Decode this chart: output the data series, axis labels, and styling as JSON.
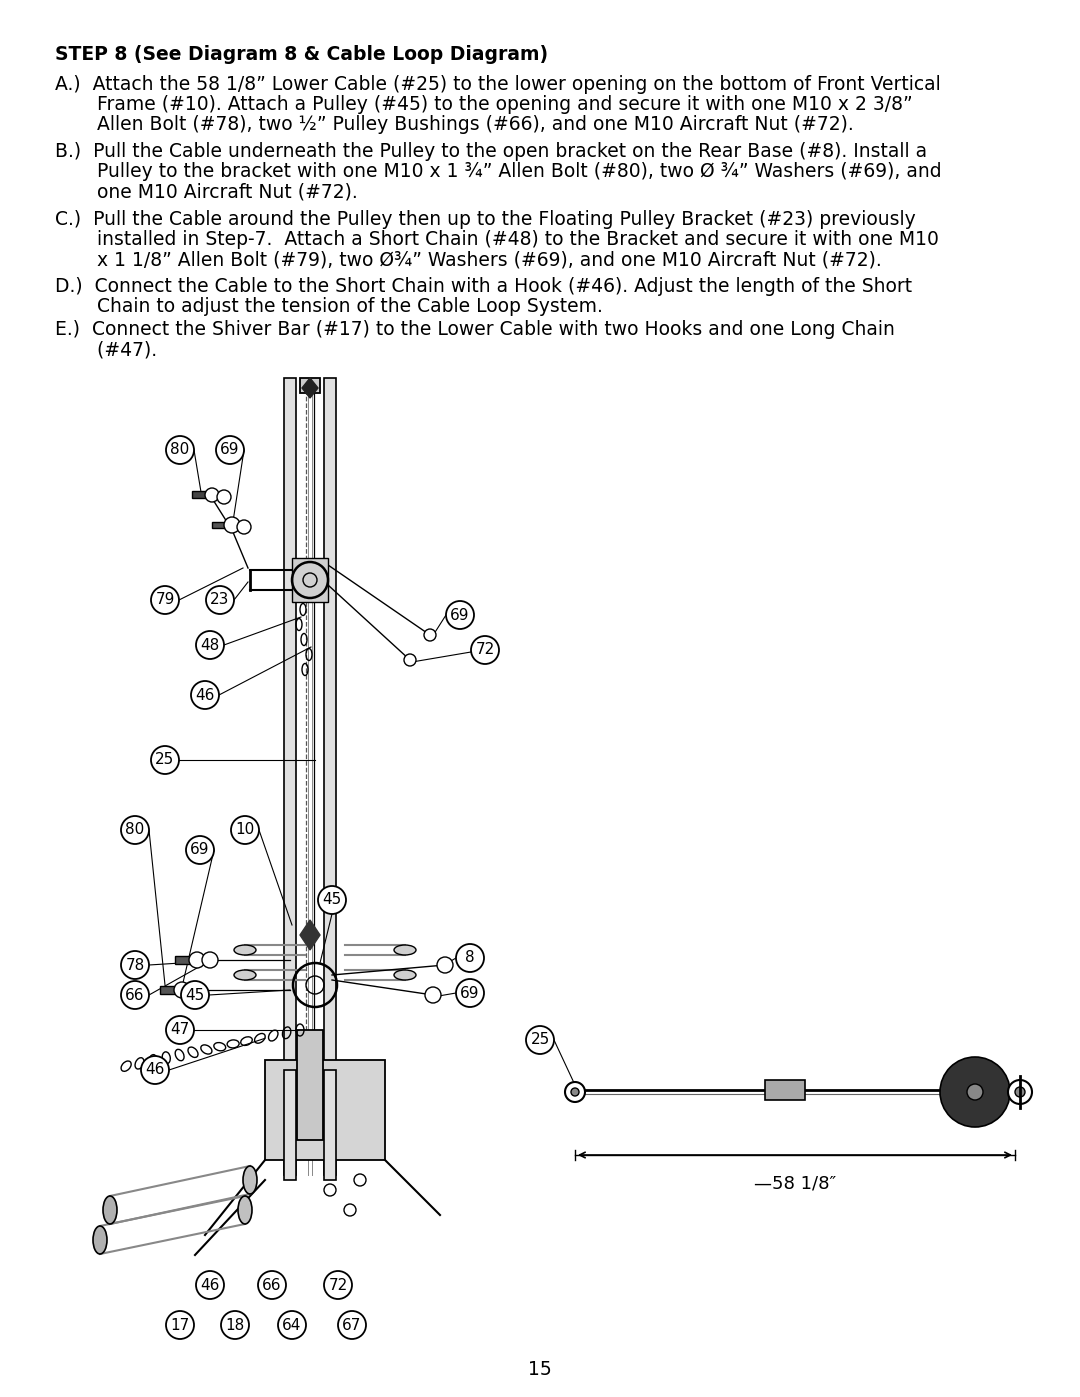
{
  "title": "STEP 8 (See Diagram 8 & Cable Loop Diagram)",
  "line_A1": "A.)  Attach the 58 1/8” Lower Cable (#25) to the lower opening on the bottom of Front Vertical",
  "line_A2": "      Frame (#10). Attach a Pulley (#45) to the opening and secure it with one M10 x 2 3/8”",
  "line_A3": "      Allen Bolt (#78), two ½” Pulley Bushings (#66), and one M10 Aircraft Nut (#72).",
  "line_B1": "B.)  Pull the Cable underneath the Pulley to the open bracket on the Rear Base (#8). Install a",
  "line_B2": "      Pulley to the bracket with one M10 x 1 ¾” Allen Bolt (#80), two Ø ¾” Washers (#69), and",
  "line_B3": "      one M10 Aircraft Nut (#72).",
  "line_C1": "C.)  Pull the Cable around the Pulley then up to the Floating Pulley Bracket (#23) previously",
  "line_C2": "      installed in Step-7.  Attach a Short Chain (#48) to the Bracket and secure it with one M10",
  "line_C3": "      x 1 1/8” Allen Bolt (#79), two Ø¾” Washers (#69), and one M10 Aircraft Nut (#72).",
  "line_D1": "D.)  Connect the Cable to the Short Chain with a Hook (#46). Adjust the length of the Short",
  "line_D2": "      Chain to adjust the tension of the Cable Loop System.",
  "line_E1": "E.)  Connect the Shiver Bar (#17) to the Lower Cable with two Hooks and one Long Chain",
  "line_E2": "      (#47).",
  "page_number": "15",
  "bg_color": "#ffffff",
  "text_color": "#000000"
}
